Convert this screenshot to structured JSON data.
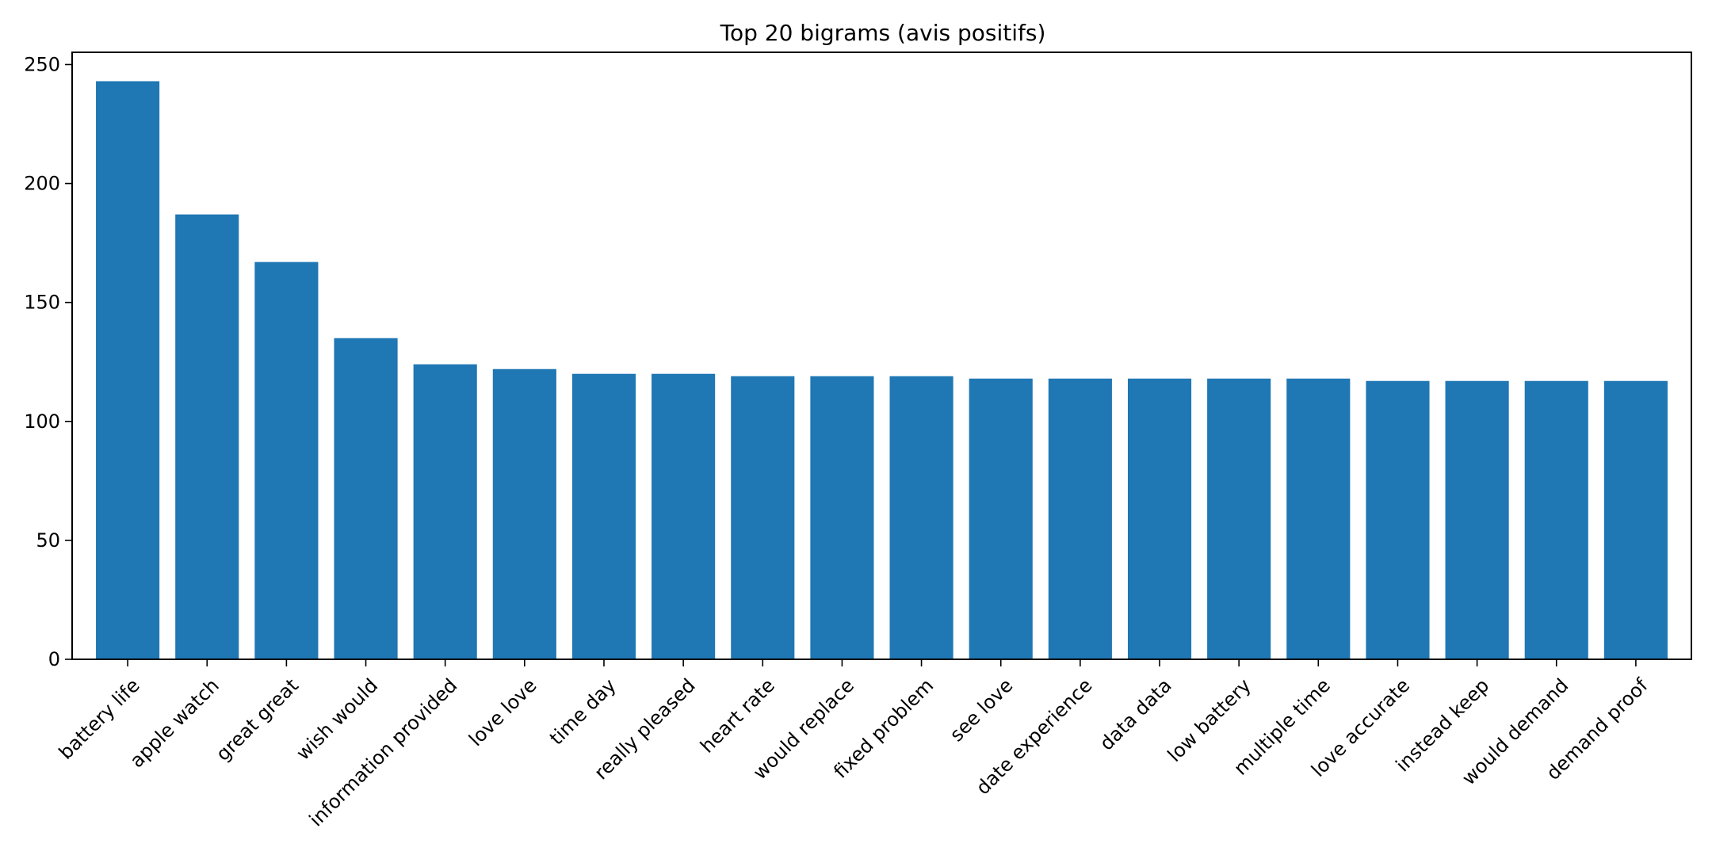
{
  "chart_data": {
    "type": "bar",
    "title": "Top 20 bigrams (avis positifs)",
    "xlabel": "",
    "ylabel": "",
    "categories": [
      "battery life",
      "apple watch",
      "great great",
      "wish would",
      "information provided",
      "love love",
      "time day",
      "really pleased",
      "heart rate",
      "would replace",
      "fixed problem",
      "see love",
      "date experience",
      "data data",
      "low battery",
      "multiple time",
      "love accurate",
      "instead keep",
      "would demand",
      "demand proof"
    ],
    "values": [
      243,
      187,
      167,
      135,
      124,
      122,
      120,
      120,
      119,
      119,
      119,
      118,
      118,
      118,
      118,
      118,
      117,
      117,
      117,
      117
    ],
    "ylim": [
      0,
      255.15
    ],
    "yticks": [
      0,
      50,
      100,
      150,
      200,
      250
    ],
    "grid": false,
    "legend": "none",
    "bar_color": "#1f77b4",
    "x_tick_rotation": 45
  }
}
